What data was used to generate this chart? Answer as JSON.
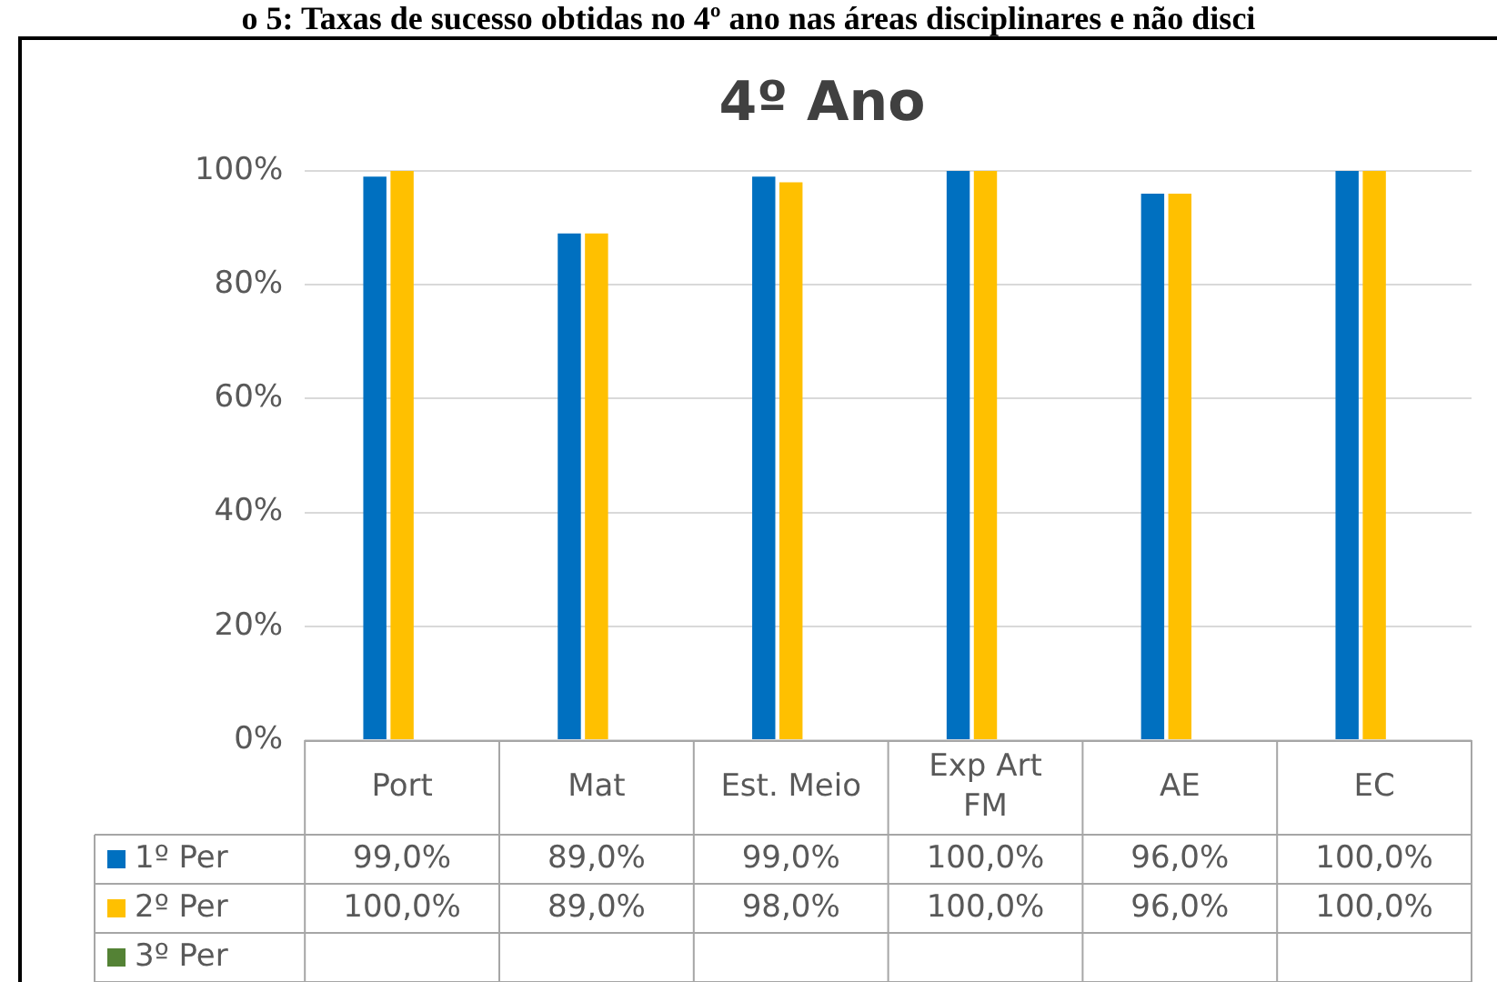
{
  "chart_data": {
    "type": "bar",
    "title": "4º Ano",
    "annotations": [
      "o 5: Taxas de sucesso obtidas no 4º ano nas áreas disciplinares e não disci"
    ],
    "categories": [
      "Port",
      "Mat",
      "Est. Meio",
      "Exp Art\nFM",
      "AE",
      "EC"
    ],
    "series": [
      {
        "name": "1º Per",
        "color": "#0070c0",
        "values": [
          99,
          89,
          99,
          100,
          96,
          100
        ],
        "value_labels": [
          "99,0%",
          "89,0%",
          "99,0%",
          "100,0%",
          "96,0%",
          "100,0%"
        ]
      },
      {
        "name": "2º Per",
        "color": "#ffc000",
        "values": [
          100,
          89,
          98,
          100,
          96,
          100
        ],
        "value_labels": [
          "100,0%",
          "89,0%",
          "98,0%",
          "100,0%",
          "96,0%",
          "100,0%"
        ]
      },
      {
        "name": "3º Per",
        "color": "#548235",
        "values": [
          null,
          null,
          null,
          null,
          null,
          null
        ],
        "value_labels": [
          null,
          null,
          null,
          null,
          null,
          null
        ]
      }
    ],
    "ylim": [
      0,
      100
    ],
    "yticks": [
      {
        "value": 0,
        "label": "0%"
      },
      {
        "value": 20,
        "label": "20%"
      },
      {
        "value": 40,
        "label": "40%"
      },
      {
        "value": 60,
        "label": "60%"
      },
      {
        "value": 80,
        "label": "80%"
      },
      {
        "value": 100,
        "label": "100%"
      }
    ],
    "grid": "y",
    "legend": "bottom"
  }
}
